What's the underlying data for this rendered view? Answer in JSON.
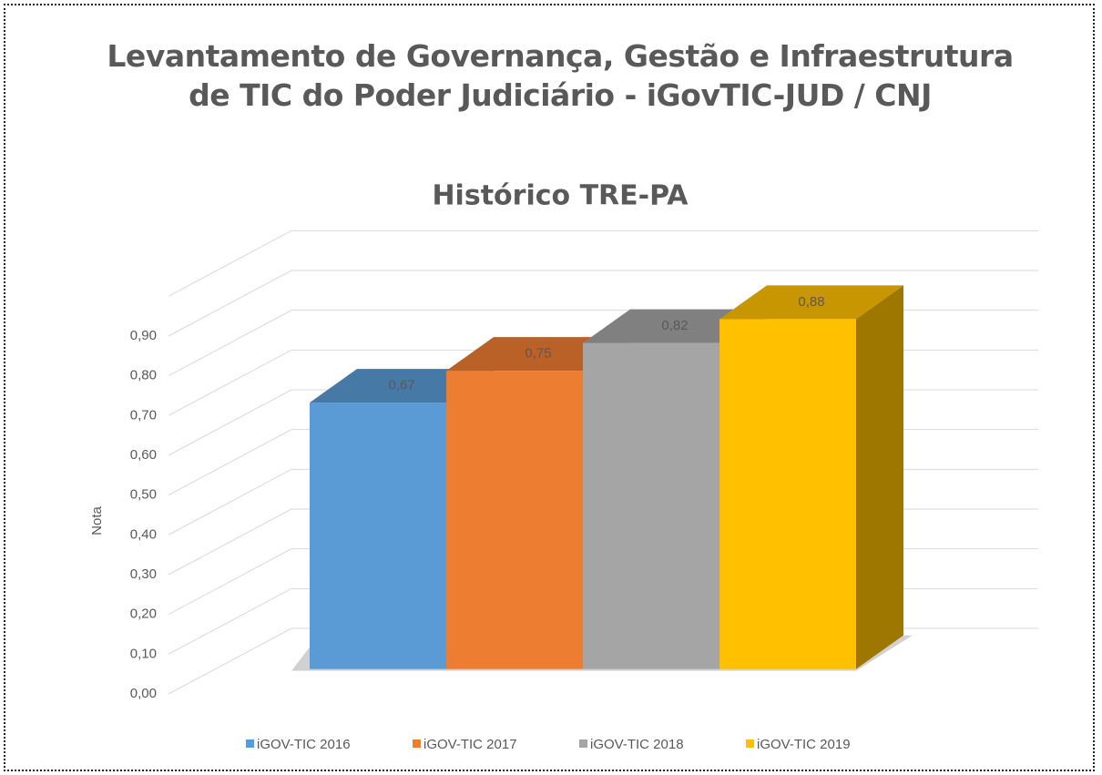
{
  "chart_data": {
    "type": "bar3d",
    "title": "Levantamento de Governança, Gestão e Infraestrutura de TIC do Poder Judiciário - iGovTIC-JUD / CNJ",
    "subtitle": "Histórico TRE-PA",
    "y_label": "Nota",
    "series": [
      {
        "name": "iGOV-TIC 2016",
        "color": "#5b9bd5",
        "values": [
          0.67
        ],
        "value_labels": [
          "0,67"
        ]
      },
      {
        "name": "iGOV-TIC 2017",
        "color": "#ed7d31",
        "values": [
          0.75
        ],
        "value_labels": [
          "0,75"
        ]
      },
      {
        "name": "iGOV-TIC 2018",
        "color": "#a5a5a5",
        "values": [
          0.82
        ],
        "value_labels": [
          "0,82"
        ]
      },
      {
        "name": "iGOV-TIC 2019",
        "color": "#ffc000",
        "values": [
          0.88
        ],
        "value_labels": [
          "0,88"
        ]
      }
    ],
    "ylim": [
      0,
      1
    ],
    "yticks": [
      {
        "value": 0,
        "label": "0,00"
      },
      {
        "value": 0.1,
        "label": "0,10"
      },
      {
        "value": 0.2,
        "label": "0,20"
      },
      {
        "value": 0.3,
        "label": "0,30"
      },
      {
        "value": 0.4,
        "label": "0,40"
      },
      {
        "value": 0.5,
        "label": "0,50"
      },
      {
        "value": 0.6,
        "label": "0,60"
      },
      {
        "value": 0.7,
        "label": "0,70"
      },
      {
        "value": 0.8,
        "label": "0,80"
      },
      {
        "value": 0.9,
        "label": "0,90"
      }
    ],
    "grid": true,
    "legend": "bottom"
  }
}
